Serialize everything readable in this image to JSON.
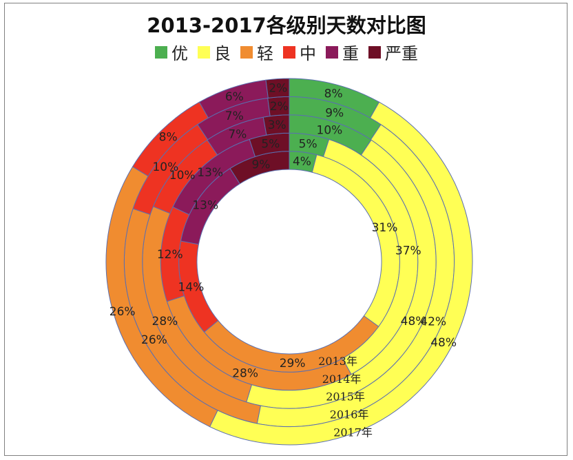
{
  "chart_data": {
    "type": "donut",
    "title": "2013-2017各级别天数对比图",
    "legend": [
      {
        "name": "优",
        "color": "#4caf50"
      },
      {
        "name": "良",
        "color": "#ffff55"
      },
      {
        "name": "轻",
        "color": "#f08c30"
      },
      {
        "name": "中",
        "color": "#ee3322"
      },
      {
        "name": "重",
        "color": "#8b1a5a"
      },
      {
        "name": "严重",
        "color": "#6e0f26"
      }
    ],
    "rings": [
      {
        "year": "2013年",
        "values": [
          4,
          31,
          29,
          14,
          13,
          9
        ],
        "labels": [
          "4%",
          "31%",
          "29%",
          "14%",
          "13%",
          "9%"
        ]
      },
      {
        "year": "2014年",
        "values": [
          5,
          37,
          28,
          12,
          13,
          5
        ],
        "labels": [
          "5%",
          "37%",
          "28%",
          "12%",
          "13%",
          "5%"
        ]
      },
      {
        "year": "2015年",
        "values": [
          10,
          48,
          28,
          10,
          7,
          3
        ],
        "labels": [
          "10%",
          "48%",
          "28%",
          "10%",
          "7%",
          "3%"
        ]
      },
      {
        "year": "2016年",
        "values": [
          9,
          42,
          26,
          10,
          7,
          2
        ],
        "labels": [
          "9%",
          "42%",
          "26%",
          "10%",
          "7%",
          "2%"
        ]
      },
      {
        "year": "2017年",
        "values": [
          8,
          48,
          26,
          8,
          6,
          2
        ],
        "labels": [
          "8%",
          "48%",
          "26%",
          "8%",
          "6%",
          "2%"
        ]
      }
    ]
  }
}
